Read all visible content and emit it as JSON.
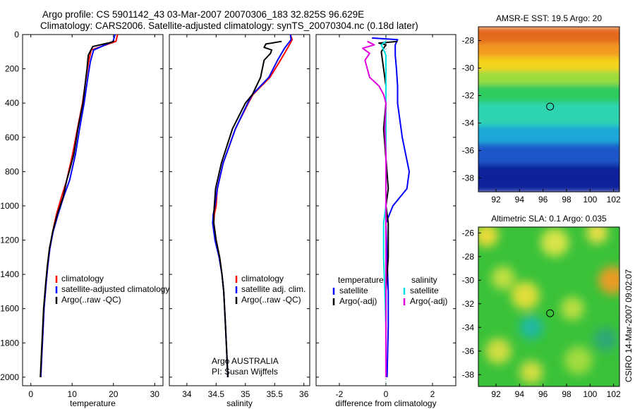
{
  "header": {
    "line1": "Argo profile: CS 5901142_43 03-Mar-2007 20070306_183 32.825S 96.629E",
    "line2": "Climatology: CARS2006. Satellite-adjusted climatology: synTS_20070304.nc (0.18d later)"
  },
  "footer": {
    "copyright": "CSIRO 14-Mar-2007 09:02:07"
  },
  "colors": {
    "climatology": "#ff0000",
    "satellite": "#0000ff",
    "argo": "#000000",
    "satellite_salinity": "#00e0e0",
    "argo_salinity": "#e000e0"
  },
  "chart_data": [
    {
      "type": "line",
      "xlabel": "temperature",
      "ylabel": "",
      "xlim": [
        -2,
        32
      ],
      "ylim": [
        2050,
        0
      ],
      "xticks": [
        0,
        10,
        20,
        30
      ],
      "yticks": [
        0,
        200,
        400,
        600,
        800,
        1000,
        1200,
        1400,
        1600,
        1800,
        2000
      ],
      "legend": [
        "climatology",
        "satellite-adjusted climatology",
        "Argo(..raw -QC)"
      ],
      "legend_position": "lower-right",
      "series": [
        {
          "name": "climatology",
          "color": "red",
          "points": [
            [
              21,
              0
            ],
            [
              20.6,
              40
            ],
            [
              14.6,
              90
            ],
            [
              14,
              160
            ],
            [
              13.4,
              250
            ],
            [
              12.5,
              400
            ],
            [
              11.3,
              550
            ],
            [
              10.1,
              700
            ],
            [
              8.7,
              850
            ],
            [
              7.4,
              950
            ],
            [
              6.2,
              1050
            ],
            [
              5.3,
              1150
            ],
            [
              4.6,
              1250
            ],
            [
              4.1,
              1350
            ],
            [
              3.7,
              1450
            ],
            [
              3.2,
              1600
            ],
            [
              2.9,
              1750
            ],
            [
              2.6,
              1900
            ],
            [
              2.4,
              2000
            ]
          ]
        },
        {
          "name": "satellite-adjusted climatology",
          "color": "blue",
          "points": [
            [
              20.4,
              0
            ],
            [
              19.9,
              40
            ],
            [
              15.2,
              90
            ],
            [
              14.4,
              160
            ],
            [
              13.8,
              250
            ],
            [
              12.9,
              400
            ],
            [
              11.8,
              550
            ],
            [
              10.8,
              700
            ],
            [
              9.4,
              850
            ],
            [
              7.9,
              950
            ],
            [
              6.6,
              1050
            ],
            [
              5.4,
              1150
            ],
            [
              4.6,
              1250
            ],
            [
              4.1,
              1350
            ],
            [
              3.7,
              1450
            ],
            [
              3.2,
              1600
            ],
            [
              2.9,
              1750
            ],
            [
              2.6,
              1900
            ],
            [
              2.4,
              2000
            ]
          ]
        },
        {
          "name": "Argo(..raw -QC)",
          "color": "black",
          "points": [
            [
              20.2,
              35
            ],
            [
              19.6,
              45
            ],
            [
              15,
              70
            ],
            [
              13.9,
              120
            ],
            [
              13.6,
              200
            ],
            [
              12.6,
              400
            ],
            [
              11.4,
              550
            ],
            [
              10.4,
              700
            ],
            [
              9.3,
              800
            ],
            [
              8.7,
              850
            ],
            [
              7.8,
              950
            ],
            [
              6.4,
              1050
            ],
            [
              5.3,
              1150
            ],
            [
              4.5,
              1250
            ],
            [
              4.0,
              1350
            ],
            [
              3.6,
              1450
            ],
            [
              3.1,
              1600
            ],
            [
              2.8,
              1750
            ],
            [
              2.5,
              1900
            ],
            [
              2.3,
              2000
            ]
          ]
        }
      ]
    },
    {
      "type": "line",
      "xlabel": "salinity",
      "ylabel": "",
      "xlim": [
        33.7,
        36.1
      ],
      "ylim": [
        2050,
        0
      ],
      "xticks": [
        34,
        34.5,
        35,
        35.5,
        36
      ],
      "yticks": [
        0,
        200,
        400,
        600,
        800,
        1000,
        1200,
        1400,
        1600,
        1800,
        2000
      ],
      "legend": [
        "climatology",
        "satellite adj. clim.",
        "Argo(..raw -QC)"
      ],
      "legend_position": "lower-right",
      "annotation": [
        "Argo AUSTRALIA",
        "PI: Susan Wijffels"
      ],
      "series": [
        {
          "name": "climatology",
          "color": "red",
          "points": [
            [
              35.77,
              0
            ],
            [
              35.8,
              30
            ],
            [
              35.72,
              80
            ],
            [
              35.6,
              150
            ],
            [
              35.42,
              250
            ],
            [
              35.13,
              350
            ],
            [
              35.05,
              400
            ],
            [
              34.83,
              550
            ],
            [
              34.62,
              750
            ],
            [
              34.52,
              900
            ],
            [
              34.5,
              1000
            ],
            [
              34.47,
              1050
            ],
            [
              34.46,
              1100
            ],
            [
              34.5,
              1200
            ],
            [
              34.56,
              1300
            ],
            [
              34.6,
              1400
            ],
            [
              34.63,
              1500
            ],
            [
              34.66,
              1700
            ],
            [
              34.68,
              1850
            ],
            [
              34.7,
              2000
            ]
          ]
        },
        {
          "name": "satellite adj. clim.",
          "color": "blue",
          "points": [
            [
              35.77,
              0
            ],
            [
              35.78,
              30
            ],
            [
              35.67,
              80
            ],
            [
              35.55,
              150
            ],
            [
              35.4,
              250
            ],
            [
              35.12,
              350
            ],
            [
              35.04,
              400
            ],
            [
              34.83,
              550
            ],
            [
              34.62,
              750
            ],
            [
              34.52,
              900
            ],
            [
              34.48,
              1000
            ],
            [
              34.45,
              1050
            ],
            [
              34.44,
              1100
            ],
            [
              34.48,
              1200
            ],
            [
              34.55,
              1300
            ],
            [
              34.6,
              1400
            ],
            [
              34.63,
              1500
            ],
            [
              34.66,
              1700
            ],
            [
              34.68,
              1850
            ],
            [
              34.7,
              2000
            ]
          ]
        },
        {
          "name": "Argo(..raw -QC)",
          "color": "black",
          "points": [
            [
              35.62,
              40
            ],
            [
              35.35,
              55
            ],
            [
              35.32,
              75
            ],
            [
              35.45,
              90
            ],
            [
              35.43,
              110
            ],
            [
              35.32,
              150
            ],
            [
              35.26,
              250
            ],
            [
              35.12,
              350
            ],
            [
              35.0,
              400
            ],
            [
              34.78,
              550
            ],
            [
              34.59,
              750
            ],
            [
              34.49,
              900
            ],
            [
              34.47,
              1000
            ],
            [
              34.46,
              1050
            ],
            [
              34.46,
              1100
            ],
            [
              34.5,
              1200
            ],
            [
              34.56,
              1300
            ],
            [
              34.6,
              1400
            ],
            [
              34.63,
              1500
            ],
            [
              34.66,
              1700
            ],
            [
              34.68,
              1850
            ],
            [
              34.7,
              2000
            ]
          ]
        }
      ]
    },
    {
      "type": "line",
      "xlabel": "difference from climatology",
      "ylabel": "",
      "xlim": [
        -3,
        3
      ],
      "ylim": [
        2050,
        0
      ],
      "xticks": [
        -2,
        0,
        2
      ],
      "yticks": [
        0,
        200,
        400,
        600,
        800,
        1000,
        1200,
        1400,
        1600,
        1800,
        2000
      ],
      "legend": [
        {
          "group": "temperature",
          "items": [
            "satellite",
            "Argo(-adj)"
          ]
        },
        {
          "group": "salinity",
          "items": [
            "satellite",
            "Argo(-adj)"
          ]
        }
      ],
      "legend_position": "lower",
      "series": [
        {
          "name": "temperature satellite",
          "color": "blue",
          "points": [
            [
              -0.6,
              20
            ],
            [
              0.5,
              30
            ],
            [
              0.4,
              60
            ],
            [
              0.4,
              120
            ],
            [
              0.45,
              200
            ],
            [
              0.5,
              300
            ],
            [
              0.5,
              400
            ],
            [
              0.6,
              500
            ],
            [
              0.7,
              600
            ],
            [
              1.0,
              800
            ],
            [
              0.9,
              900
            ],
            [
              0.3,
              1000
            ],
            [
              0.0,
              1100
            ],
            [
              0.05,
              1300
            ],
            [
              0.1,
              1500
            ],
            [
              0.1,
              1700
            ],
            [
              0.05,
              2000
            ]
          ]
        },
        {
          "name": "temperature Argo(-adj)",
          "color": "black",
          "points": [
            [
              0.5,
              40
            ],
            [
              -0.3,
              50
            ],
            [
              0.0,
              60
            ],
            [
              -0.2,
              100
            ],
            [
              -0.1,
              200
            ],
            [
              0.0,
              300
            ],
            [
              0.0,
              400
            ],
            [
              -0.1,
              550
            ],
            [
              0.1,
              900
            ],
            [
              0.0,
              1000
            ],
            [
              0.1,
              1100
            ],
            [
              0.1,
              1300
            ],
            [
              0.0,
              1500
            ],
            [
              0.0,
              1700
            ],
            [
              0.0,
              2000
            ]
          ]
        },
        {
          "name": "salinity satellite",
          "color": "cyan",
          "points": [
            [
              0.0,
              40
            ],
            [
              -0.2,
              60
            ],
            [
              0.0,
              120
            ],
            [
              0.0,
              200
            ],
            [
              0.0,
              300
            ],
            [
              0.0,
              400
            ],
            [
              0.0,
              600
            ],
            [
              0.0,
              800
            ],
            [
              0.0,
              1000
            ],
            [
              -0.1,
              1100
            ],
            [
              -0.1,
              1300
            ],
            [
              -0.05,
              1500
            ],
            [
              0.0,
              1700
            ],
            [
              0.0,
              2000
            ]
          ]
        },
        {
          "name": "salinity Argo(-adj)",
          "color": "magenta",
          "points": [
            [
              -0.8,
              40
            ],
            [
              -0.5,
              60
            ],
            [
              -1.0,
              80
            ],
            [
              -0.7,
              110
            ],
            [
              -0.9,
              150
            ],
            [
              -0.8,
              200
            ],
            [
              -0.7,
              250
            ],
            [
              -0.3,
              300
            ],
            [
              -0.1,
              350
            ],
            [
              0.0,
              400
            ],
            [
              -0.05,
              550
            ],
            [
              0.0,
              700
            ],
            [
              0.0,
              900
            ],
            [
              0.0,
              1000
            ],
            [
              0.0,
              1100
            ],
            [
              0.0,
              1300
            ],
            [
              0.0,
              1500
            ],
            [
              0.0,
              1700
            ],
            [
              0.0,
              2000
            ]
          ]
        }
      ]
    },
    {
      "type": "heatmap",
      "title": "AMSR-E SST: 19.5 Argo: 20",
      "xlim": [
        90.5,
        102.5
      ],
      "ylim": [
        -39,
        -27
      ],
      "xticks": [
        92,
        94,
        96,
        98,
        100,
        102
      ],
      "yticks": [
        -28,
        -30,
        -32,
        -34,
        -36,
        -38
      ],
      "marker": {
        "lon": 96.6,
        "lat": -32.8,
        "style": "open-circle"
      },
      "bands": [
        {
          "lat_from": -27,
          "lat_to": -28.2,
          "color": "#e36b1a"
        },
        {
          "lat_from": -28.2,
          "lat_to": -29.2,
          "color": "#f29a24"
        },
        {
          "lat_from": -29.2,
          "lat_to": -30.2,
          "color": "#f5d31e"
        },
        {
          "lat_from": -30.2,
          "lat_to": -31.2,
          "color": "#9bdc3c"
        },
        {
          "lat_from": -31.2,
          "lat_to": -32.5,
          "color": "#2ecb5e"
        },
        {
          "lat_from": -32.5,
          "lat_to": -34.2,
          "color": "#2fd4b0"
        },
        {
          "lat_from": -34.2,
          "lat_to": -35.5,
          "color": "#1ca7d8"
        },
        {
          "lat_from": -35.5,
          "lat_to": -37.0,
          "color": "#1b57c9"
        },
        {
          "lat_from": -37.0,
          "lat_to": -39.0,
          "color": "#08219a"
        }
      ]
    },
    {
      "type": "heatmap",
      "title": "Altimetric SLA: 0.1 Argo: 0.035",
      "xlim": [
        90.5,
        102.5
      ],
      "ylim": [
        -39,
        -25.5
      ],
      "xticks": [
        92,
        94,
        96,
        98,
        100,
        102
      ],
      "yticks": [
        -26,
        -28,
        -30,
        -32,
        -34,
        -36,
        -38
      ],
      "marker": {
        "lon": 96.6,
        "lat": -32.8,
        "style": "open-circle"
      },
      "background": "#39c23a",
      "blobs": [
        {
          "lon": 91.2,
          "lat": -26.2,
          "r": 1.0,
          "color": "#f4dc3a"
        },
        {
          "lon": 97.0,
          "lat": -26.8,
          "r": 1.2,
          "color": "#e2e64a"
        },
        {
          "lon": 100.6,
          "lat": -26.0,
          "r": 0.9,
          "color": "#f4e04a"
        },
        {
          "lon": 101.9,
          "lat": -30.0,
          "r": 1.2,
          "color": "#f29a24"
        },
        {
          "lon": 92.6,
          "lat": -29.8,
          "r": 1.0,
          "color": "#c8e040"
        },
        {
          "lon": 94.5,
          "lat": -31.3,
          "r": 1.2,
          "color": "#e8df3a"
        },
        {
          "lon": 98.5,
          "lat": -32.4,
          "r": 1.0,
          "color": "#bfe040"
        },
        {
          "lon": 95.0,
          "lat": -34.0,
          "r": 1.0,
          "color": "#1fb8a8"
        },
        {
          "lon": 92.2,
          "lat": -36.0,
          "r": 1.1,
          "color": "#d9de40"
        },
        {
          "lon": 99.0,
          "lat": -36.8,
          "r": 1.2,
          "color": "#a6dc3e"
        },
        {
          "lon": 95.0,
          "lat": -37.8,
          "r": 1.0,
          "color": "#d9de40"
        },
        {
          "lon": 101.3,
          "lat": -35.0,
          "r": 1.0,
          "color": "#2aa67a"
        }
      ]
    }
  ]
}
